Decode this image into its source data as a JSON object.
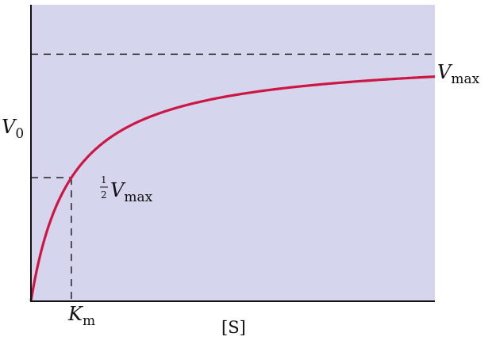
{
  "chart_data": {
    "type": "line",
    "title": "",
    "xlabel": "[S]",
    "ylabel": {
      "main": "V",
      "sub": "0"
    },
    "xlim": [
      0,
      10
    ],
    "ylim": [
      0,
      1.2
    ],
    "grid": false,
    "colors": {
      "plot_background": "#d6d5ee",
      "curve": "#cc1744",
      "axis": "#111111",
      "guide": "#222222"
    },
    "series": [
      {
        "type": "michaelis-menten",
        "vmax": 1.0,
        "km": 1.0
      }
    ],
    "annotations": {
      "vmax_label": {
        "main": "V",
        "sub": "max"
      },
      "half_vmax_label": {
        "numerator": "1",
        "denominator": "2",
        "main": "V",
        "sub": "max"
      },
      "km_label": {
        "main": "K",
        "sub": "m"
      }
    }
  }
}
